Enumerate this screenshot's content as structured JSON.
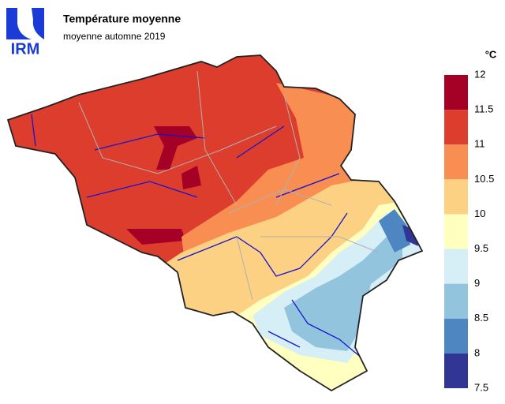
{
  "header": {
    "logo": "IRM",
    "title": "Température moyenne",
    "subtitle": "moyenne automne 2019"
  },
  "legend": {
    "unit": "°C",
    "ticks": [
      12,
      11.5,
      11,
      10.5,
      10,
      9.5,
      9,
      8.5,
      8,
      7.5
    ],
    "colors": [
      "#a50026",
      "#dd3d2d",
      "#f98e52",
      "#fdd184",
      "#ffffbf",
      "#d6eef5",
      "#92c4de",
      "#4d86c0",
      "#313695"
    ]
  }
}
